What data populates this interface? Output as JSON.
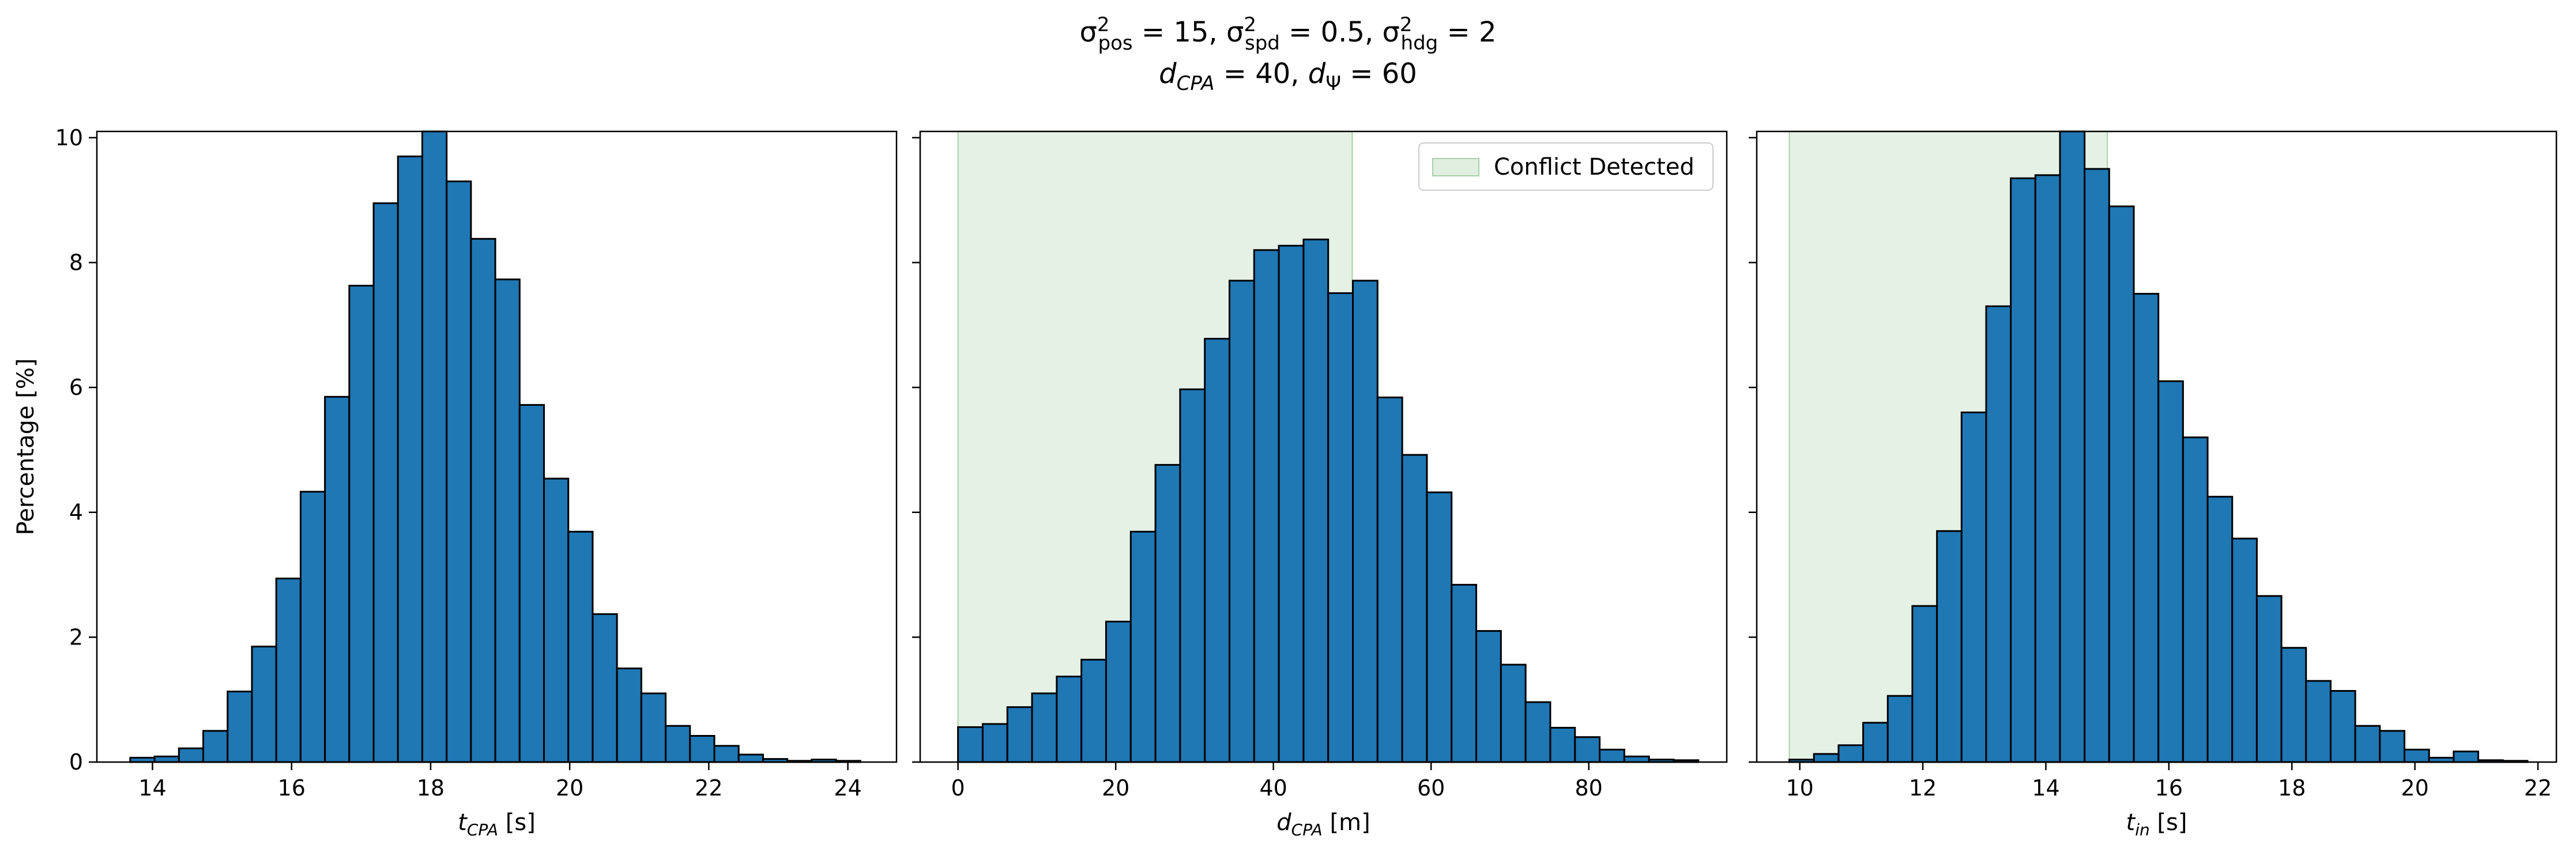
{
  "figure": {
    "title_line1": "σ²pos = 15, σ²spd = 0.5, σ²hdg = 2",
    "title_line2": "dCPA = 40, dΨ = 60"
  },
  "chart_data": [
    {
      "type": "bar",
      "title": "",
      "xlabel": "tCPA [s]",
      "ylabel": "Percentage [%]",
      "xlim": [
        13.2,
        24.7
      ],
      "ylim": [
        0,
        10.1
      ],
      "xticks": [
        14,
        16,
        18,
        20,
        22,
        24
      ],
      "yticks": [
        0,
        2,
        4,
        6,
        8,
        10
      ],
      "bin_start": 13.68,
      "bin_width": 0.35,
      "values": [
        0.07,
        0.09,
        0.22,
        0.5,
        1.13,
        1.85,
        2.94,
        4.33,
        5.85,
        7.63,
        8.95,
        9.7,
        10.1,
        9.3,
        8.38,
        7.73,
        5.72,
        4.54,
        3.69,
        2.37,
        1.5,
        1.1,
        0.58,
        0.42,
        0.26,
        0.12,
        0.05,
        0.02,
        0.04,
        0.02
      ],
      "shade": null,
      "legend": null,
      "colors": {
        "bar": "#1f77b4",
        "edge": "#000000"
      }
    },
    {
      "type": "bar",
      "title": "",
      "xlabel": "dCPA [m]",
      "ylabel": "",
      "xlim": [
        -4.8,
        97.5
      ],
      "ylim": [
        0,
        10.1
      ],
      "xticks": [
        0,
        20,
        40,
        60,
        80
      ],
      "yticks": [
        0,
        2,
        4,
        6,
        8,
        10
      ],
      "bin_start": 0,
      "bin_width": 3.13,
      "values": [
        0.56,
        0.61,
        0.88,
        1.1,
        1.37,
        1.64,
        2.25,
        3.69,
        4.76,
        5.97,
        6.78,
        7.71,
        8.2,
        8.27,
        8.37,
        7.51,
        7.71,
        5.84,
        4.92,
        4.32,
        2.84,
        2.1,
        1.56,
        0.96,
        0.55,
        0.4,
        0.2,
        0.09,
        0.04,
        0.03
      ],
      "shade": {
        "x0": 0,
        "x1": 50,
        "color": "#d3e8d3"
      },
      "legend": {
        "label": "Conflict Detected",
        "position": "upper right"
      },
      "colors": {
        "bar": "#1f77b4",
        "edge": "#000000"
      }
    },
    {
      "type": "bar",
      "title": "",
      "xlabel": "tin [s]",
      "ylabel": "",
      "xlim": [
        9.3,
        22.3
      ],
      "ylim": [
        0,
        10.1
      ],
      "xticks": [
        10,
        12,
        14,
        16,
        18,
        20,
        22
      ],
      "yticks": [
        0,
        2,
        4,
        6,
        8,
        10
      ],
      "bin_start": 9.83,
      "bin_width": 0.4,
      "values": [
        0.04,
        0.13,
        0.27,
        0.63,
        1.06,
        2.5,
        3.7,
        5.6,
        7.3,
        9.35,
        9.4,
        10.1,
        9.5,
        8.9,
        7.5,
        6.1,
        5.2,
        4.25,
        3.58,
        2.66,
        1.83,
        1.3,
        1.14,
        0.58,
        0.5,
        0.2,
        0.07,
        0.17,
        0.03,
        0.02
      ],
      "shade": {
        "x0": 9.83,
        "x1": 15.0,
        "color": "#d3e8d3"
      },
      "legend": null,
      "colors": {
        "bar": "#1f77b4",
        "edge": "#000000"
      }
    }
  ]
}
